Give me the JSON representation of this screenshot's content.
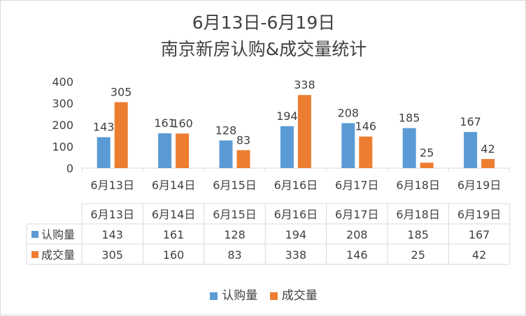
{
  "chart_data": {
    "type": "bar",
    "title": "6月13日-6月19日",
    "subtitle": "南京新房认购&成交量统计",
    "categories": [
      "6月13日",
      "6月14日",
      "6月15日",
      "6月16日",
      "6月17日",
      "6月18日",
      "6月19日"
    ],
    "series": [
      {
        "name": "认购量",
        "values": [
          143,
          161,
          128,
          194,
          208,
          185,
          167
        ],
        "color": "#5B9BD5"
      },
      {
        "name": "成交量",
        "values": [
          305,
          160,
          83,
          338,
          146,
          25,
          42
        ],
        "color": "#ED7D31"
      }
    ],
    "ylim": [
      0,
      400
    ],
    "yticks": [
      "0",
      "100",
      "200",
      "300",
      "400"
    ],
    "grid": false,
    "data_labels": true,
    "data_table": true,
    "legend": "bottom"
  }
}
